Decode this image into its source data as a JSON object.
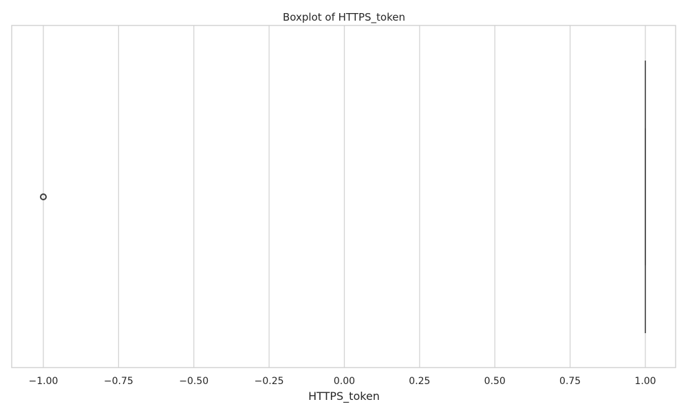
{
  "chart_data": {
    "type": "box",
    "title": "Boxplot of HTTPS_token",
    "xlabel": "HTTPS_token",
    "ylabel": "",
    "orientation": "horizontal",
    "xlim": [
      -1.0,
      1.0
    ],
    "xticks": [
      -1.0,
      -0.75,
      -0.5,
      -0.25,
      0.0,
      0.25,
      0.5,
      0.75,
      1.0
    ],
    "xtick_labels": [
      "−1.00",
      "−0.75",
      "−0.50",
      "−0.25",
      "0.00",
      "0.25",
      "0.50",
      "0.75",
      "1.00"
    ],
    "grid": true,
    "box": {
      "whisker_low": 1.0,
      "q1": 1.0,
      "median": 1.0,
      "q3": 1.0,
      "whisker_high": 1.0
    },
    "outliers": [
      -1.0
    ],
    "colors": {
      "box_line": "#555555",
      "grid": "#d3d3d3",
      "frame": "#cccccc",
      "outlier_edge": "#3d3d3d"
    }
  }
}
